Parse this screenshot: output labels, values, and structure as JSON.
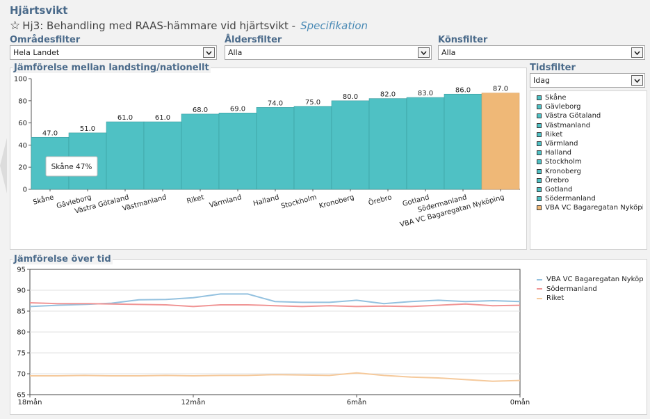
{
  "page": {
    "title": "Hjärtsvikt",
    "subtitle": "Hj3: Behandling med RAAS-hämmare vid hjärtsvikt -",
    "subtitle_link": "Specifikation"
  },
  "filters": {
    "area": {
      "label": "Områdesfilter",
      "value": "Hela Landet"
    },
    "age": {
      "label": "Åldersfilter",
      "value": "Alla"
    },
    "gender": {
      "label": "Könsfilter",
      "value": "Alla"
    },
    "time": {
      "label": "Tidsfilter",
      "value": "Idag"
    }
  },
  "colors": {
    "bar_teal": "#4fc1c4",
    "bar_highlight": "#efb877",
    "line_vba": "#93c1df",
    "line_sodermanland": "#f09595",
    "line_riket": "#f5c99b"
  },
  "tooltip": "Skåne 47%",
  "chart_data": [
    {
      "type": "bar",
      "title": "Jämförelse mellan landsting/nationellt",
      "categories": [
        "Skåne",
        "Gävleborg",
        "Västra Götaland",
        "Västmanland",
        "Riket",
        "Värmland",
        "Halland",
        "Stockholm",
        "Kronoberg",
        "Örebro",
        "Gotland",
        "Södermanland",
        "VBA VC Bagaregatan Nyköping"
      ],
      "values": [
        47,
        51,
        61,
        61,
        68,
        69,
        74,
        75,
        80,
        82,
        83,
        86,
        87
      ],
      "value_labels": [
        "47.0",
        "51.0",
        "61.0",
        "61.0",
        "68.0",
        "69.0",
        "74.0",
        "75.0",
        "80.0",
        "82.0",
        "83.0",
        "86.0",
        "87.0"
      ],
      "highlight_index": 12,
      "ylim": [
        0,
        100
      ],
      "yticks": [
        0,
        20,
        40,
        60,
        80,
        100
      ],
      "legend": [
        "Skåne",
        "Gävleborg",
        "Västra Götaland",
        "Västmanland",
        "Riket",
        "Värmland",
        "Halland",
        "Stockholm",
        "Kronoberg",
        "Örebro",
        "Gotland",
        "Södermanland",
        "VBA VC Bagaregatan Nyköping"
      ],
      "legend_position": "right"
    },
    {
      "type": "line",
      "title": "Jämförelse över tid",
      "x": [
        18,
        17,
        16,
        15,
        14,
        13,
        12,
        11,
        10,
        9,
        8,
        7,
        6,
        5,
        4,
        3,
        2,
        1,
        0
      ],
      "xtick_labels": [
        "18mån",
        "12mån",
        "6mån",
        "0mån"
      ],
      "xtick_values": [
        18,
        12,
        6,
        0
      ],
      "ylim": [
        65,
        95
      ],
      "yticks": [
        65,
        70,
        75,
        80,
        85,
        90,
        95
      ],
      "series": [
        {
          "name": "VBA VC Bagaregatan Nyköping",
          "values": [
            86.1,
            86.4,
            86.6,
            86.9,
            87.7,
            87.8,
            88.2,
            89.1,
            89.1,
            87.3,
            87.1,
            87.1,
            87.6,
            86.8,
            87.3,
            87.6,
            87.3,
            87.5,
            87.3
          ]
        },
        {
          "name": "Södermanland",
          "values": [
            87.0,
            86.8,
            86.8,
            86.7,
            86.6,
            86.5,
            86.1,
            86.5,
            86.5,
            86.3,
            86.1,
            86.3,
            86.1,
            86.2,
            86.1,
            86.4,
            86.7,
            86.3,
            86.4
          ]
        },
        {
          "name": "Riket",
          "values": [
            69.5,
            69.5,
            69.6,
            69.5,
            69.5,
            69.6,
            69.5,
            69.6,
            69.6,
            69.8,
            69.7,
            69.6,
            70.2,
            69.6,
            69.2,
            69.0,
            68.6,
            68.2,
            68.4
          ]
        }
      ],
      "grid": true,
      "legend_position": "right"
    }
  ]
}
